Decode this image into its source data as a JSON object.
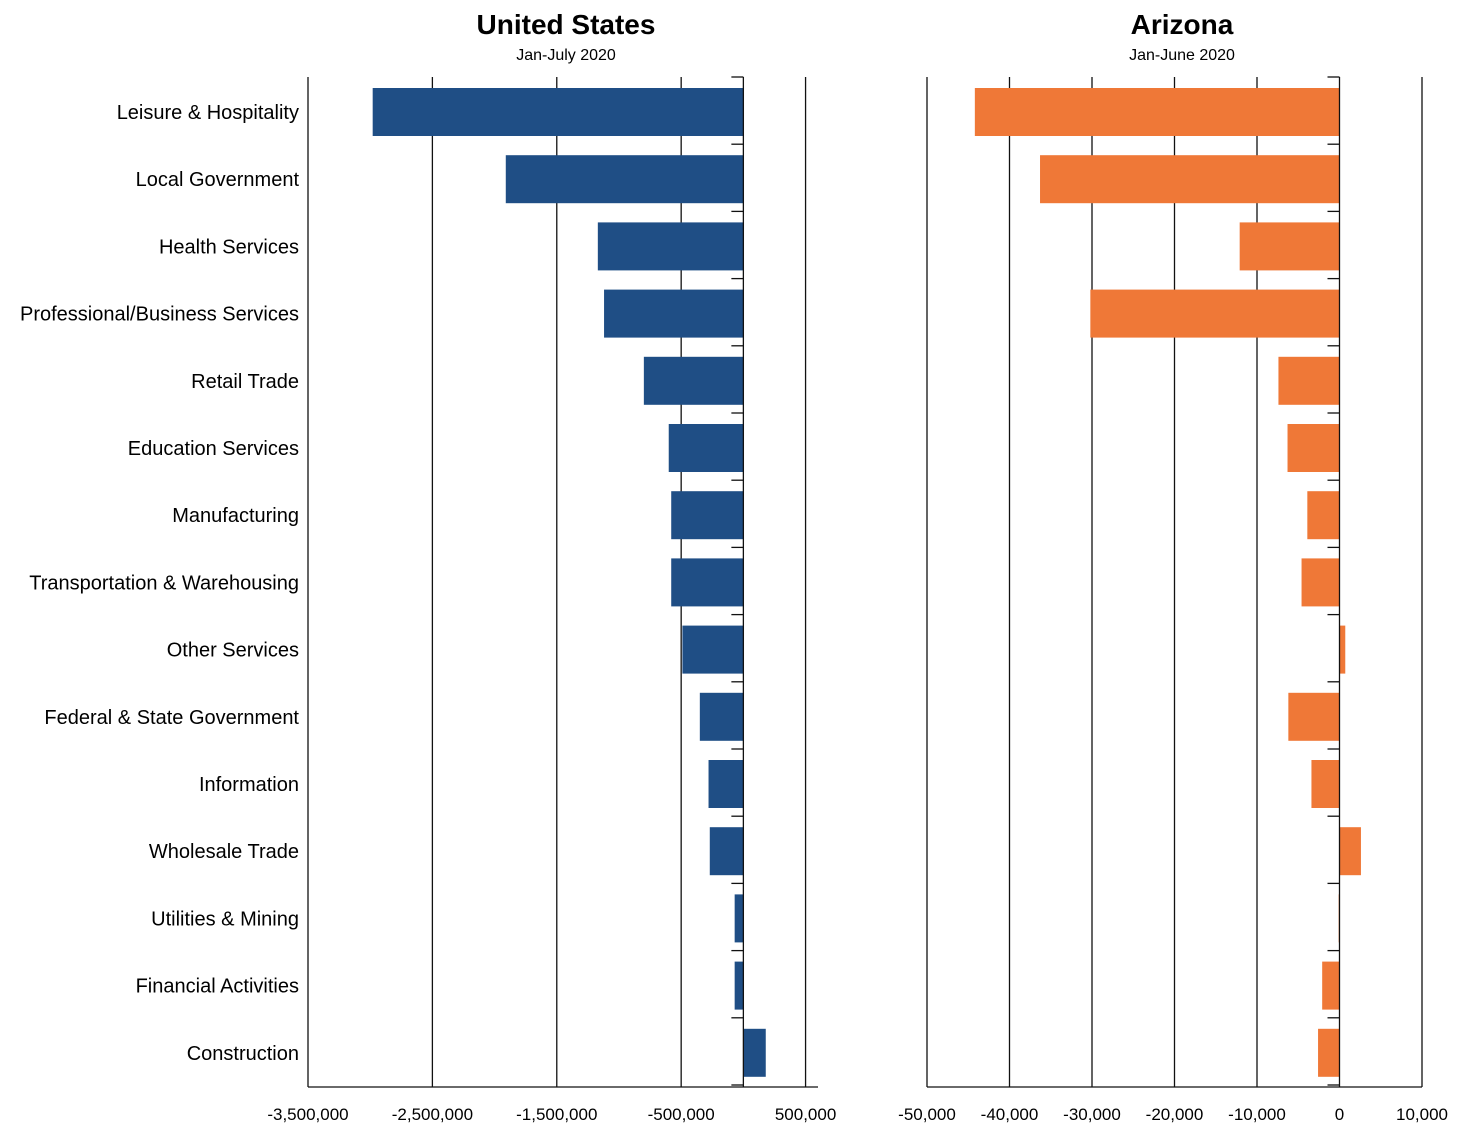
{
  "chart_data": [
    {
      "type": "bar",
      "orientation": "horizontal",
      "title": "United States",
      "subtitle": "Jan-July 2020",
      "xlabel": "",
      "ylabel": "",
      "xlim": [
        -3500000,
        600000
      ],
      "ticks": [
        -3500000,
        -2500000,
        -1500000,
        -500000,
        500000
      ],
      "tick_labels": [
        "-3,500,000",
        "-2,500,000",
        "-1,500,000",
        "-500,000",
        "500,000"
      ],
      "grid": true,
      "color": "#1f4e85",
      "categories": [
        "Leisure & Hospitality",
        "Local Government",
        "Health Services",
        "Professional/Business Services",
        "Retail Trade",
        "Education Services",
        "Manufacturing",
        "Transportation & Warehousing",
        "Other Services",
        "Federal & State Government",
        "Information",
        "Wholesale Trade",
        "Utilities & Mining",
        "Financial Activities",
        "Construction"
      ],
      "values": [
        -2980000,
        -1910000,
        -1170000,
        -1120000,
        -800000,
        -600000,
        -580000,
        -580000,
        -490000,
        -350000,
        -280000,
        -270000,
        -70000,
        -70000,
        180000
      ]
    },
    {
      "type": "bar",
      "orientation": "horizontal",
      "title": "Arizona",
      "subtitle": "Jan-June 2020",
      "xlabel": "",
      "ylabel": "",
      "xlim": [
        -50000,
        10000
      ],
      "ticks": [
        -50000,
        -40000,
        -30000,
        -20000,
        -10000,
        0,
        10000
      ],
      "tick_labels": [
        "-50,000",
        "-40,000",
        "-30,000",
        "-20,000",
        "-10,000",
        "0",
        "10,000"
      ],
      "grid": true,
      "color": "#ef7837",
      "categories": [
        "Leisure & Hospitality",
        "Local Government",
        "Health Services",
        "Professional/Business Services",
        "Retail Trade",
        "Education Services",
        "Manufacturing",
        "Transportation & Warehousing",
        "Other Services",
        "Federal & State Government",
        "Information",
        "Wholesale Trade",
        "Utilities & Mining",
        "Financial Activities",
        "Construction"
      ],
      "values": [
        -44200,
        -36300,
        -12100,
        -30200,
        -7400,
        -6300,
        -3900,
        -4600,
        700,
        -6200,
        -3400,
        2600,
        -100,
        -2100,
        -2600
      ]
    }
  ]
}
